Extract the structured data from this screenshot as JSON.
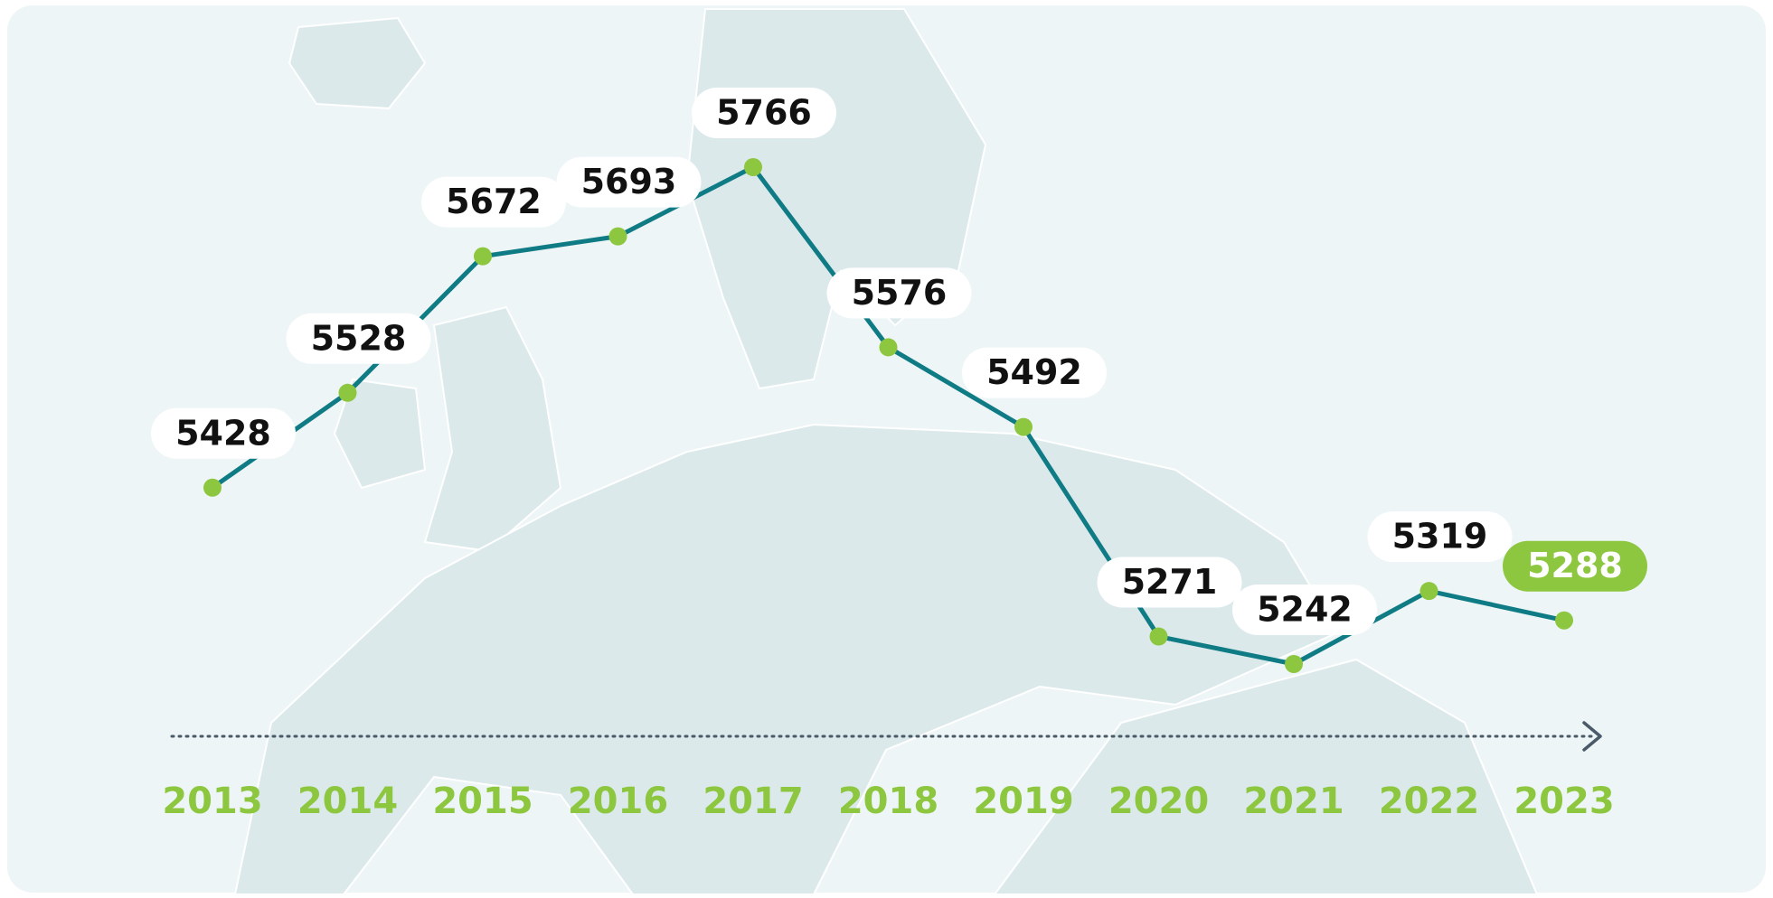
{
  "chart_data": {
    "type": "line",
    "categories": [
      "2013",
      "2014",
      "2015",
      "2016",
      "2017",
      "2018",
      "2019",
      "2020",
      "2021",
      "2022",
      "2023"
    ],
    "values": [
      5428,
      5528,
      5672,
      5693,
      5766,
      5576,
      5492,
      5271,
      5242,
      5319,
      5288
    ],
    "color": "#0f7b84",
    "marker_color": "#8dc63f",
    "highlight_category": "2023",
    "highlight_color": "#8dc63f"
  }
}
